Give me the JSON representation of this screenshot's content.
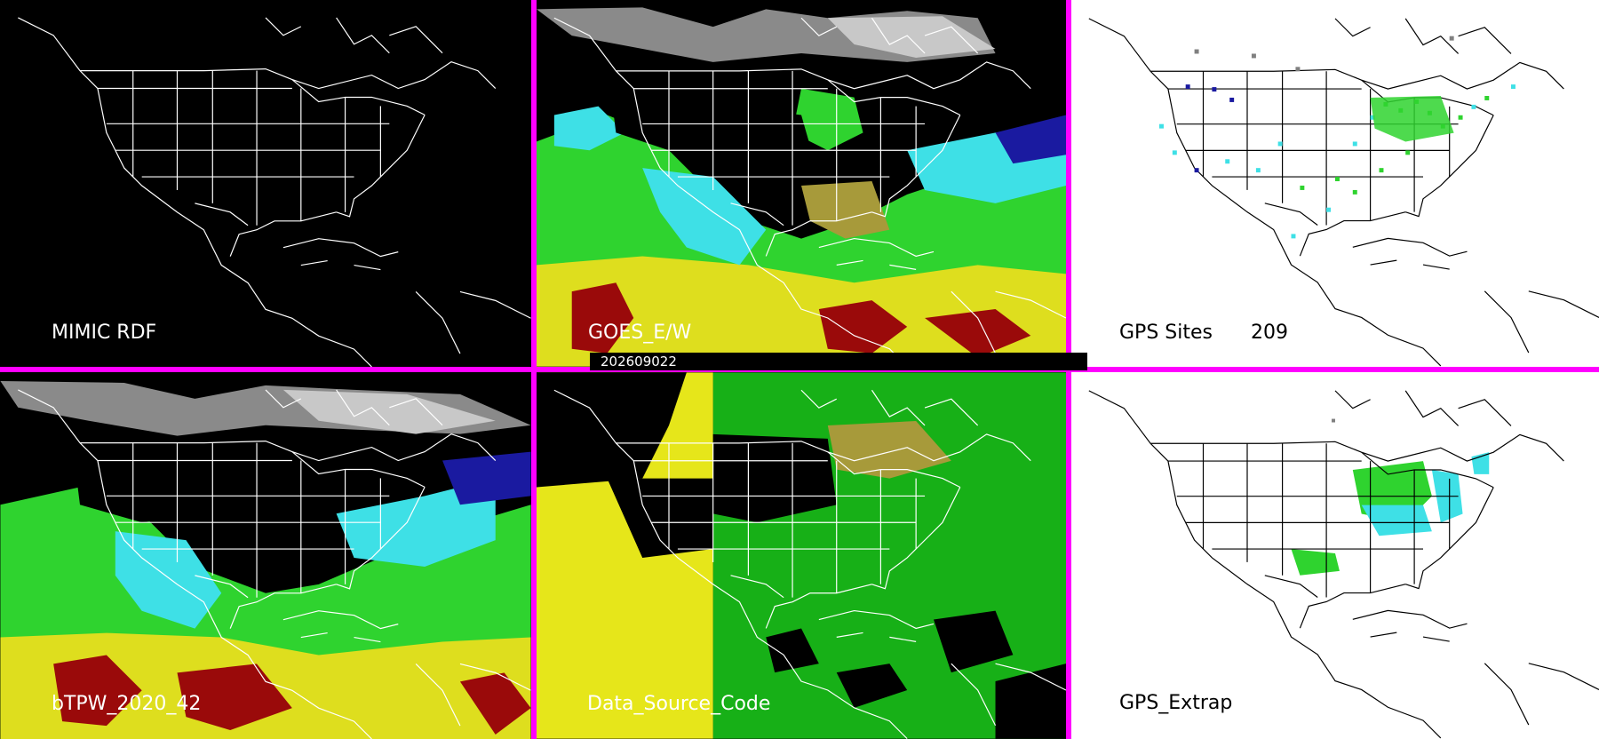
{
  "colors": {
    "divider": "#ff00ff",
    "border_dark": "#ffffff",
    "border_light": "#000000",
    "tpw_low": "#1a1aa0",
    "tpw_midlow": "#3ee0e6",
    "tpw_mid": "#2fd32f",
    "tpw_midhigh": "#dede1e",
    "tpw_high": "#9a0a0a",
    "source_a": "#e6e61a",
    "source_b": "#17b017",
    "source_c": "#a79a3a"
  },
  "panels": [
    {
      "id": "mimic",
      "label": "MIMIC RDF"
    },
    {
      "id": "goes",
      "label": "GOES_E/W"
    },
    {
      "id": "gps_sites",
      "label": "GPS Sites",
      "count": "209"
    },
    {
      "id": "btpw",
      "label": "bTPW_2020_42"
    },
    {
      "id": "source_code",
      "label": "Data_Source_Code"
    },
    {
      "id": "gps_extrap",
      "label": "GPS_Extrap"
    }
  ],
  "timestamp": "202609022"
}
